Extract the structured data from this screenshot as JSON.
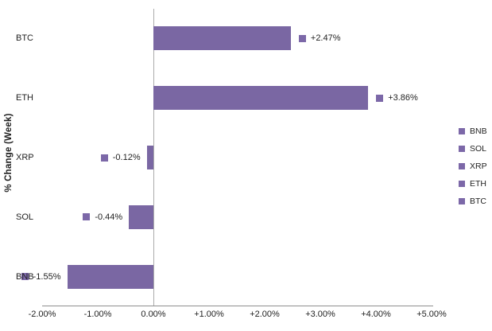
{
  "chart_data": {
    "type": "bar",
    "orientation": "horizontal",
    "title": "",
    "xlabel": "",
    "ylabel": "% Change (Week)",
    "categories": [
      "BTC",
      "ETH",
      "XRP",
      "SOL",
      "BNB"
    ],
    "values": [
      2.47,
      3.86,
      -0.12,
      -0.44,
      -1.55
    ],
    "value_labels": [
      "+2.47%",
      "+3.86%",
      "-0.12%",
      "-0.44%",
      "-1.55%"
    ],
    "x_tick_labels": [
      "-2.00%",
      "-1.00%",
      "0.00%",
      "+1.00%",
      "+2.00%",
      "+3.00%",
      "+4.00%",
      "+5.00%"
    ],
    "x_tick_values": [
      -2,
      -1,
      0,
      1,
      2,
      3,
      4,
      5
    ],
    "xlim": [
      -2,
      5
    ],
    "grid": false,
    "legend": {
      "position": "right",
      "items": [
        "BNB",
        "SOL",
        "XRP",
        "ETH",
        "BTC"
      ]
    },
    "colors": {
      "bar": "#7a67a3",
      "marker": "#7c68a8",
      "zero_line": "#ababab",
      "axis_line": "#8f8f8f",
      "text": "#1f1f1f"
    }
  }
}
